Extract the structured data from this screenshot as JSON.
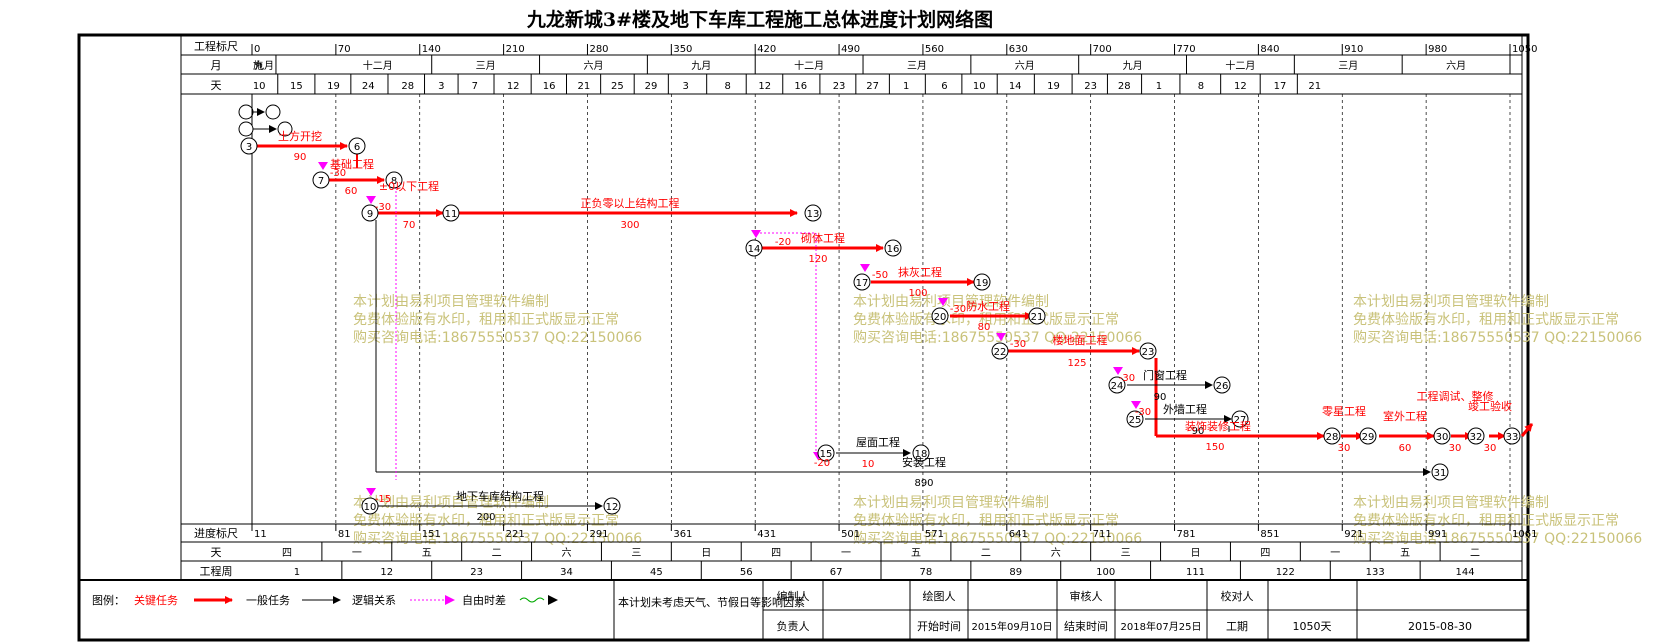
{
  "title": "九龙新城3#楼及地下车库工程施工总体进度计划网络图",
  "header": {
    "row_labels": {
      "scale": "工程标尺",
      "month": "月",
      "day": "天"
    },
    "scale": [
      "0",
      "70",
      "140",
      "210",
      "280",
      "350",
      "420",
      "490",
      "560",
      "630",
      "700",
      "770",
      "840",
      "910",
      "980",
      "1050"
    ],
    "months": [
      {
        "label": "九月",
        "d0": 0,
        "d1": 20
      },
      {
        "label": "十二月",
        "d0": 60,
        "d1": 150
      },
      {
        "label": "三月",
        "d0": 150,
        "d1": 240
      },
      {
        "label": "六月",
        "d0": 240,
        "d1": 330
      },
      {
        "label": "九月",
        "d0": 330,
        "d1": 420
      },
      {
        "label": "十二月",
        "d0": 420,
        "d1": 510
      },
      {
        "label": "三月",
        "d0": 510,
        "d1": 600
      },
      {
        "label": "六月",
        "d0": 600,
        "d1": 690
      },
      {
        "label": "九月",
        "d0": 690,
        "d1": 780
      },
      {
        "label": "十二月",
        "d0": 780,
        "d1": 870
      },
      {
        "label": "三月",
        "d0": 870,
        "d1": 960
      },
      {
        "label": "六月",
        "d0": 960,
        "d1": 1050
      }
    ],
    "month_small": "施",
    "days": [
      {
        "t": "10",
        "d": 6
      },
      {
        "t": "15",
        "d": 37
      },
      {
        "t": "19",
        "d": 68
      },
      {
        "t": "24",
        "d": 97
      },
      {
        "t": "28",
        "d": 130
      },
      {
        "t": "3",
        "d": 158
      },
      {
        "t": "7",
        "d": 186
      },
      {
        "t": "12",
        "d": 218
      },
      {
        "t": "16",
        "d": 248
      },
      {
        "t": "21",
        "d": 277
      },
      {
        "t": "25",
        "d": 305
      },
      {
        "t": "29",
        "d": 333
      },
      {
        "t": "3",
        "d": 362
      },
      {
        "t": "8",
        "d": 397
      },
      {
        "t": "12",
        "d": 428
      },
      {
        "t": "16",
        "d": 458
      },
      {
        "t": "23",
        "d": 490
      },
      {
        "t": "27",
        "d": 518
      },
      {
        "t": "1",
        "d": 546
      },
      {
        "t": "6",
        "d": 578
      },
      {
        "t": "10",
        "d": 607
      },
      {
        "t": "14",
        "d": 637
      },
      {
        "t": "19",
        "d": 669
      },
      {
        "t": "23",
        "d": 700
      },
      {
        "t": "28",
        "d": 728
      },
      {
        "t": "1",
        "d": 757
      },
      {
        "t": "8",
        "d": 792
      },
      {
        "t": "12",
        "d": 825
      },
      {
        "t": "17",
        "d": 858
      },
      {
        "t": "21",
        "d": 887
      }
    ]
  },
  "footer": {
    "row_labels": {
      "scale": "进度标尺",
      "day": "天",
      "week": "工程周"
    },
    "scale": [
      "11",
      "81",
      "151",
      "221",
      "291",
      "361",
      "431",
      "501",
      "571",
      "641",
      "711",
      "781",
      "851",
      "921",
      "991",
      "1061"
    ],
    "weekdays": [
      "四",
      "一",
      "五",
      "二",
      "六",
      "三",
      "日",
      "四",
      "一",
      "五",
      "二",
      "六",
      "三",
      "日",
      "四",
      "一",
      "五",
      "二"
    ],
    "weeks": [
      "1",
      "12",
      "23",
      "34",
      "45",
      "56",
      "67",
      "78",
      "89",
      "100",
      "111",
      "122",
      "133",
      "144"
    ]
  },
  "tasks": [
    {
      "from": "3",
      "to": "6",
      "name": "土方开挖",
      "dur": "90",
      "crit": true
    },
    {
      "from": "7",
      "to": "8",
      "name": "基础工程",
      "dur": "60",
      "crit": true
    },
    {
      "from": "9",
      "to": "11",
      "name": "±0以下工程",
      "dur": "70",
      "crit": true
    },
    {
      "from": "11",
      "to": "13",
      "name": "正负零以上结构工程",
      "dur": "300",
      "crit": true
    },
    {
      "from": "14",
      "to": "16",
      "name": "砌体工程",
      "dur": "120",
      "crit": true
    },
    {
      "from": "17",
      "to": "19",
      "name": "抹灰工程",
      "dur": "100",
      "crit": true
    },
    {
      "from": "20",
      "to": "21",
      "name": "防水工程",
      "dur": "80",
      "crit": true
    },
    {
      "from": "22",
      "to": "23",
      "name": "楼地面工程",
      "dur": "125",
      "crit": true
    },
    {
      "from": "24",
      "to": "26",
      "name": "门窗工程",
      "dur": "90",
      "crit": false
    },
    {
      "from": "25",
      "to": "27",
      "name": "外墙工程",
      "dur": "90",
      "crit": false
    },
    {
      "from": "23",
      "to": "28",
      "name": "装饰装修工程",
      "dur": "150",
      "crit": true
    },
    {
      "from": "28",
      "to": "29",
      "name": "零星工程",
      "dur": "30",
      "crit": true
    },
    {
      "from": "29",
      "to": "30",
      "name": "室外工程",
      "dur": "60",
      "crit": true
    },
    {
      "from": "30",
      "to": "32",
      "name": "工程调试、整修",
      "dur": "30",
      "crit": true
    },
    {
      "from": "32",
      "to": "33",
      "name": "竣工验收",
      "dur": "30",
      "crit": true
    },
    {
      "from": "15",
      "to": "18",
      "name": "屋面工程",
      "dur": "10",
      "crit": false
    },
    {
      "from": "10",
      "to": "12",
      "name": "地下车库结构工程",
      "dur": "200",
      "crit": false
    },
    {
      "from": "10",
      "to": "31",
      "name": "安装工程",
      "dur": "890",
      "crit": false
    }
  ],
  "lags": [
    "-30",
    "-30",
    "-20",
    "-50",
    "-30",
    "-30",
    "-30",
    "-30",
    "-15",
    "-20"
  ],
  "watermark": [
    "本计划由易利项目管理软件编制",
    "免费体验版有水印，租用和正式版显示正常",
    "购买咨询电话:18675550537 QQ:22150066"
  ],
  "legend": {
    "label": "图例：",
    "critical": "关键任务",
    "normal": "一般任务",
    "logic": "逻辑关系",
    "float": "自由时差",
    "colors": {
      "critical": "#ff0000",
      "normal": "#000000",
      "float": "#ff00ff",
      "wave": "#00aa00",
      "watermark": "#c9c27a"
    }
  },
  "info": {
    "note": "本计划未考虑天气、节假日等影响因素",
    "compiler": "编制人",
    "drafter": "绘图人",
    "reviewer": "审核人",
    "checker": "校对人",
    "manager": "负责人",
    "start_label": "开始时间",
    "start": "2015年09月10日",
    "end_label": "结束时间",
    "end": "2018年07月25日",
    "period_label": "工期",
    "period": "1050天",
    "date": "2015-08-30"
  }
}
